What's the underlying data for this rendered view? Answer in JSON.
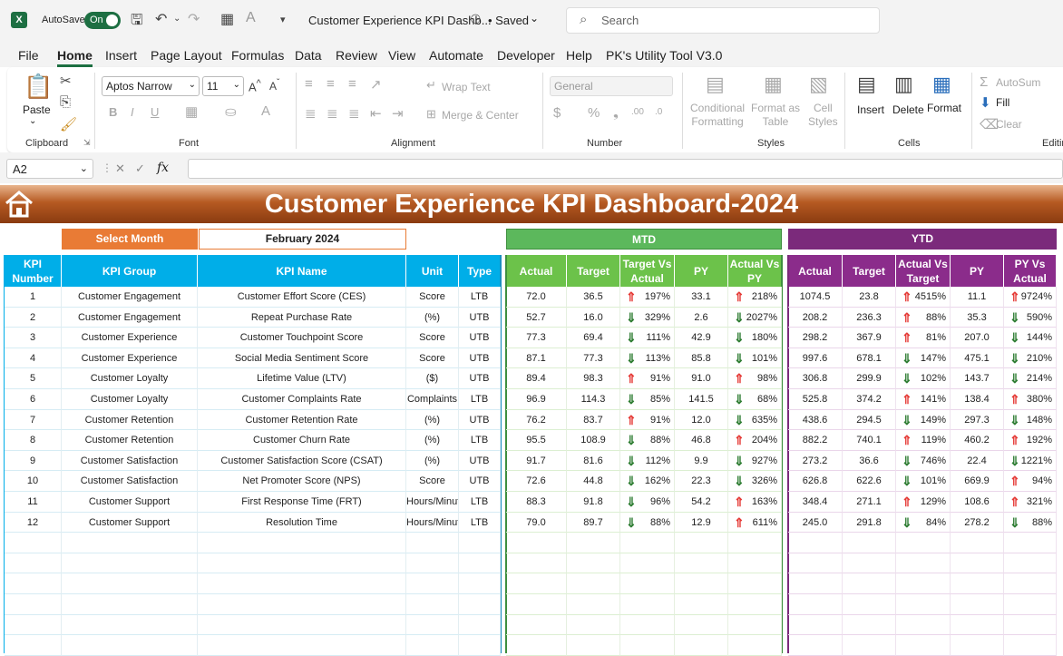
{
  "titlebar": {
    "autosave_label": "AutoSave",
    "autosave_state": "On",
    "doc_title": "Customer Experience KPI Dashb...",
    "saved_label": "• Saved",
    "search_placeholder": "Search"
  },
  "menu": [
    "File",
    "Home",
    "Insert",
    "Page Layout",
    "Formulas",
    "Data",
    "Review",
    "View",
    "Automate",
    "Developer",
    "Help",
    "PK's Utility Tool V3.0"
  ],
  "ribbon": {
    "paste": "Paste",
    "clipboard": "Clipboard",
    "font_name": "Aptos Narrow",
    "font_size": "11",
    "font": "Font",
    "wrap_text": "Wrap Text",
    "merge_center": "Merge & Center",
    "alignment": "Alignment",
    "number_format": "General",
    "number": "Number",
    "conditional_formatting": "Conditional\nFormatting",
    "format_as_table": "Format as\nTable",
    "cell_styles": "Cell\nStyles",
    "styles": "Styles",
    "insert": "Insert",
    "delete": "Delete",
    "format": "Format",
    "cells": "Cells",
    "autosum": "AutoSum",
    "fill": "Fill",
    "clear": "Clear",
    "editing": "Editin"
  },
  "formula_bar": {
    "name_box": "A2",
    "fx": "fx"
  },
  "dashboard": {
    "title": "Customer Experience KPI Dashboard-2024",
    "select_month_label": "Select Month",
    "month_value": "February 2024",
    "mtd_label": "MTD",
    "ytd_label": "YTD",
    "headers": {
      "kpi_number": "KPI Number",
      "kpi_group": "KPI Group",
      "kpi_name": "KPI Name",
      "unit": "Unit",
      "type": "Type",
      "mtd": [
        "Actual",
        "Target",
        "Target Vs Actual",
        "PY",
        "Actual Vs PY"
      ],
      "ytd": [
        "Actual",
        "Target",
        "Actual Vs Target",
        "PY",
        "PY Vs Actual"
      ]
    },
    "rows": [
      {
        "num": "1",
        "group": "Customer Engagement",
        "name": "Customer Effort Score (CES)",
        "unit": "Score",
        "type": "LTB",
        "m_actual": "72.0",
        "m_target": "36.5",
        "m_tva_dir": "up",
        "m_tva": "197%",
        "m_py": "33.1",
        "m_avp_dir": "up",
        "m_avp": "218%",
        "y_actual": "1074.5",
        "y_target": "23.8",
        "y_avt_dir": "up",
        "y_avt": "4515%",
        "y_py": "11.1",
        "y_pva_dir": "up",
        "y_pva": "9724%"
      },
      {
        "num": "2",
        "group": "Customer Engagement",
        "name": "Repeat Purchase Rate",
        "unit": "(%)",
        "type": "UTB",
        "m_actual": "52.7",
        "m_target": "16.0",
        "m_tva_dir": "dn",
        "m_tva": "329%",
        "m_py": "2.6",
        "m_avp_dir": "dn",
        "m_avp": "2027%",
        "y_actual": "208.2",
        "y_target": "236.3",
        "y_avt_dir": "up",
        "y_avt": "88%",
        "y_py": "35.3",
        "y_pva_dir": "dn",
        "y_pva": "590%"
      },
      {
        "num": "3",
        "group": "Customer Experience",
        "name": "Customer Touchpoint Score",
        "unit": "Score",
        "type": "UTB",
        "m_actual": "77.3",
        "m_target": "69.4",
        "m_tva_dir": "dn",
        "m_tva": "111%",
        "m_py": "42.9",
        "m_avp_dir": "dn",
        "m_avp": "180%",
        "y_actual": "298.2",
        "y_target": "367.9",
        "y_avt_dir": "up",
        "y_avt": "81%",
        "y_py": "207.0",
        "y_pva_dir": "dn",
        "y_pva": "144%"
      },
      {
        "num": "4",
        "group": "Customer Experience",
        "name": "Social Media Sentiment Score",
        "unit": "Score",
        "type": "UTB",
        "m_actual": "87.1",
        "m_target": "77.3",
        "m_tva_dir": "dn",
        "m_tva": "113%",
        "m_py": "85.8",
        "m_avp_dir": "dn",
        "m_avp": "101%",
        "y_actual": "997.6",
        "y_target": "678.1",
        "y_avt_dir": "dn",
        "y_avt": "147%",
        "y_py": "475.1",
        "y_pva_dir": "dn",
        "y_pva": "210%"
      },
      {
        "num": "5",
        "group": "Customer Loyalty",
        "name": "Lifetime Value (LTV)",
        "unit": "($)",
        "type": "UTB",
        "m_actual": "89.4",
        "m_target": "98.3",
        "m_tva_dir": "up",
        "m_tva": "91%",
        "m_py": "91.0",
        "m_avp_dir": "up",
        "m_avp": "98%",
        "y_actual": "306.8",
        "y_target": "299.9",
        "y_avt_dir": "dn",
        "y_avt": "102%",
        "y_py": "143.7",
        "y_pva_dir": "dn",
        "y_pva": "214%"
      },
      {
        "num": "6",
        "group": "Customer Loyalty",
        "name": "Customer Complaints Rate",
        "unit": "Complaints",
        "type": "LTB",
        "m_actual": "96.9",
        "m_target": "114.3",
        "m_tva_dir": "dn",
        "m_tva": "85%",
        "m_py": "141.5",
        "m_avp_dir": "dn",
        "m_avp": "68%",
        "y_actual": "525.8",
        "y_target": "374.2",
        "y_avt_dir": "up",
        "y_avt": "141%",
        "y_py": "138.4",
        "y_pva_dir": "up",
        "y_pva": "380%"
      },
      {
        "num": "7",
        "group": "Customer Retention",
        "name": "Customer Retention Rate",
        "unit": "(%)",
        "type": "UTB",
        "m_actual": "76.2",
        "m_target": "83.7",
        "m_tva_dir": "up",
        "m_tva": "91%",
        "m_py": "12.0",
        "m_avp_dir": "dn",
        "m_avp": "635%",
        "y_actual": "438.6",
        "y_target": "294.5",
        "y_avt_dir": "dn",
        "y_avt": "149%",
        "y_py": "297.3",
        "y_pva_dir": "dn",
        "y_pva": "148%"
      },
      {
        "num": "8",
        "group": "Customer Retention",
        "name": "Customer Churn Rate",
        "unit": "(%)",
        "type": "LTB",
        "m_actual": "95.5",
        "m_target": "108.9",
        "m_tva_dir": "dn",
        "m_tva": "88%",
        "m_py": "46.8",
        "m_avp_dir": "up",
        "m_avp": "204%",
        "y_actual": "882.2",
        "y_target": "740.1",
        "y_avt_dir": "up",
        "y_avt": "119%",
        "y_py": "460.2",
        "y_pva_dir": "up",
        "y_pva": "192%"
      },
      {
        "num": "9",
        "group": "Customer Satisfaction",
        "name": "Customer Satisfaction Score (CSAT)",
        "unit": "(%)",
        "type": "UTB",
        "m_actual": "91.7",
        "m_target": "81.6",
        "m_tva_dir": "dn",
        "m_tva": "112%",
        "m_py": "9.9",
        "m_avp_dir": "dn",
        "m_avp": "927%",
        "y_actual": "273.2",
        "y_target": "36.6",
        "y_avt_dir": "dn",
        "y_avt": "746%",
        "y_py": "22.4",
        "y_pva_dir": "dn",
        "y_pva": "1221%"
      },
      {
        "num": "10",
        "group": "Customer Satisfaction",
        "name": "Net Promoter Score (NPS)",
        "unit": "Score",
        "type": "UTB",
        "m_actual": "72.6",
        "m_target": "44.8",
        "m_tva_dir": "dn",
        "m_tva": "162%",
        "m_py": "22.3",
        "m_avp_dir": "dn",
        "m_avp": "326%",
        "y_actual": "626.8",
        "y_target": "622.6",
        "y_avt_dir": "dn",
        "y_avt": "101%",
        "y_py": "669.9",
        "y_pva_dir": "up",
        "y_pva": "94%"
      },
      {
        "num": "11",
        "group": "Customer Support",
        "name": "First Response Time (FRT)",
        "unit": "Hours/Minutes",
        "type": "LTB",
        "m_actual": "88.3",
        "m_target": "91.8",
        "m_tva_dir": "dn",
        "m_tva": "96%",
        "m_py": "54.2",
        "m_avp_dir": "up",
        "m_avp": "163%",
        "y_actual": "348.4",
        "y_target": "271.1",
        "y_avt_dir": "up",
        "y_avt": "129%",
        "y_py": "108.6",
        "y_pva_dir": "up",
        "y_pva": "321%"
      },
      {
        "num": "12",
        "group": "Customer Support",
        "name": "Resolution Time",
        "unit": "Hours/Minutes",
        "type": "LTB",
        "m_actual": "79.0",
        "m_target": "89.7",
        "m_tva_dir": "dn",
        "m_tva": "88%",
        "m_py": "12.9",
        "m_avp_dir": "up",
        "m_avp": "611%",
        "y_actual": "245.0",
        "y_target": "291.8",
        "y_avt_dir": "dn",
        "y_avt": "84%",
        "y_py": "278.2",
        "y_pva_dir": "dn",
        "y_pva": "88%"
      }
    ]
  },
  "colors": {
    "excel_green": "#1d6f42",
    "banner_brown": "#8a3b10",
    "select_orange": "#e97b35",
    "mtd_green": "#5cb85c",
    "ytd_purple": "#7b2a7b",
    "header_blue": "#00aee8",
    "arrow_red": "#e53935",
    "arrow_green": "#2e7d32"
  },
  "icons": {
    "up": "⇑",
    "dn": "⇓"
  }
}
